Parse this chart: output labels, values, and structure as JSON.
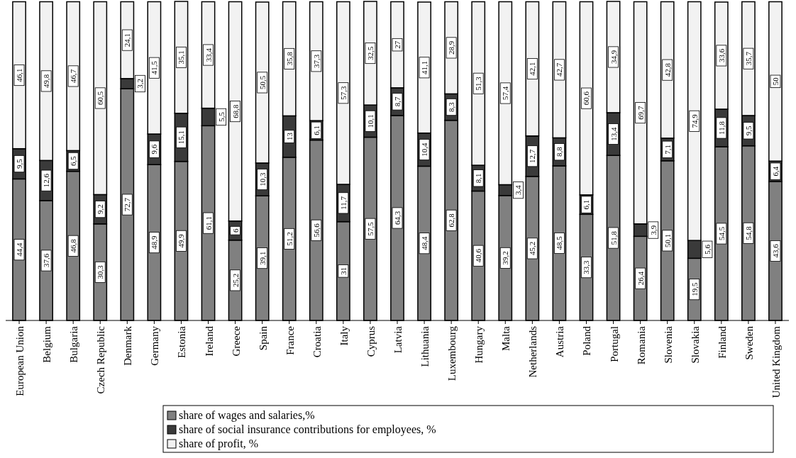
{
  "chart_data": {
    "type": "bar",
    "stacked": true,
    "legend": "bottom",
    "categories": [
      "European Union",
      "Belgium",
      "Bulgaria",
      "Czech Republic",
      "Denmark",
      "Germany",
      "Estonia",
      "Ireland",
      "Greece",
      "Spain",
      "France",
      "Croatia",
      "Italy",
      "Cyprus",
      "Latvia",
      "Lithuania",
      "Luxembourg",
      "Hungary",
      "Malta",
      "Netherlands",
      "Austria",
      "Poland",
      "Portugal",
      "Romania",
      "Slovenia",
      "Slovakia",
      "Finland",
      "Sweden",
      "United Kingdom"
    ],
    "series": [
      {
        "name": "share of wages and salaries,%",
        "color": "#808080",
        "values": [
          44.4,
          37.6,
          46.8,
          30.3,
          72.7,
          48.9,
          49.9,
          61.1,
          25.2,
          39.1,
          51.2,
          56.6,
          31,
          57.5,
          64.3,
          48.4,
          62.8,
          40.6,
          39.2,
          45.2,
          48.5,
          33.3,
          51.8,
          26.4,
          50.1,
          19.5,
          54.5,
          54.8,
          43.6
        ],
        "value_labels": [
          "44,4",
          "37,6",
          "46,8",
          "30,3",
          "72,7",
          "48,9",
          "49,9",
          "61,1",
          "25,2",
          "39,1",
          "51,2",
          "56,6",
          "31",
          "57,5",
          "64,3",
          "48,4",
          "62,8",
          "40,6",
          "39,2",
          "45,2",
          "48,5",
          "33,3",
          "51,8",
          "26,4",
          "50,1",
          "19,5",
          "54,5",
          "54,8",
          "43,6"
        ]
      },
      {
        "name": "share of social insurance contributions for employees, %",
        "color": "#3a3a3a",
        "values": [
          9.5,
          12.6,
          6.5,
          9.2,
          3.2,
          9.6,
          15.1,
          5.5,
          6,
          10.3,
          13,
          6.1,
          11.7,
          10.1,
          8.7,
          10.4,
          8.3,
          8.1,
          3.4,
          12.7,
          8.8,
          6.1,
          13.4,
          3.9,
          7.1,
          5.6,
          11.8,
          9.5,
          6.4
        ],
        "value_labels": [
          "9,5",
          "12,6",
          "6,5",
          "9,2",
          "3,2",
          "9,6",
          "15,1",
          "5,5",
          "6",
          "10,3",
          "13",
          "6,1",
          "11,7",
          "10,1",
          "8,7",
          "10,4",
          "8,3",
          "8,1",
          "3,4",
          "12,7",
          "8,8",
          "6,1",
          "13,4",
          "3,9",
          "7,1",
          "5,6",
          "11,8",
          "9,5",
          "6,4"
        ]
      },
      {
        "name": "share of profit, %",
        "color": "#f2f2f2",
        "values": [
          46.1,
          49.8,
          46.7,
          60.5,
          24.1,
          41.5,
          35.1,
          33.4,
          68.8,
          50.5,
          35.8,
          37.3,
          57.3,
          32.5,
          27,
          41.1,
          28.9,
          51.3,
          57.4,
          42.1,
          42.7,
          60.6,
          34.9,
          69.7,
          42.8,
          74.9,
          33.6,
          35.7,
          50
        ],
        "value_labels": [
          "46,1",
          "49,8",
          "46,7",
          "60,5",
          "24,1",
          "41,5",
          "35,1",
          "33,4",
          "68,8",
          "50,5",
          "35,8",
          "37,3",
          "57,3",
          "32,5",
          "27",
          "41,1",
          "28,9",
          "51,3",
          "57,4",
          "42,1",
          "42,7",
          "60,6",
          "34,9",
          "69,7",
          "42,8",
          "74,9",
          "33,6",
          "35,7",
          "50"
        ]
      }
    ]
  }
}
